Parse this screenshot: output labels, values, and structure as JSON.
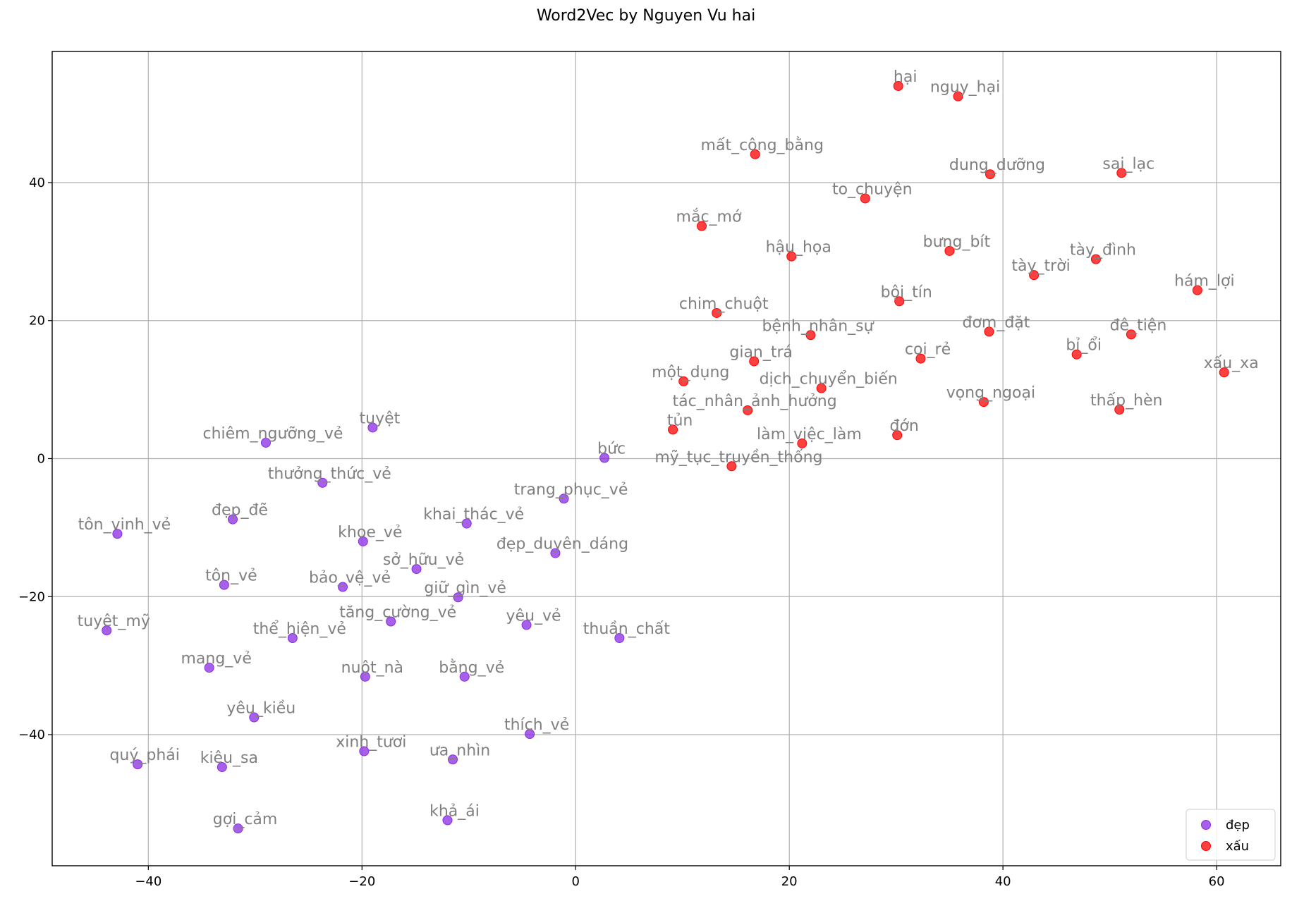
{
  "chart_data": {
    "type": "scatter",
    "title": "Word2Vec by Nguyen Vu hai",
    "xlabel": "",
    "ylabel": "",
    "xlim": [
      -49,
      66
    ],
    "ylim": [
      -59,
      59
    ],
    "xticks": [
      -40,
      -20,
      0,
      20,
      40,
      60
    ],
    "yticks": [
      -40,
      -20,
      0,
      20,
      40
    ],
    "grid": true,
    "legend_position": "bottom-right",
    "series": [
      {
        "name": "đẹp",
        "color": "#8a2be2",
        "points": [
          {
            "label": "tuyệt",
            "x": -19.0,
            "y": 4.5
          },
          {
            "label": "chiêm_ngưỡng_vẻ",
            "x": -29.0,
            "y": 2.3
          },
          {
            "label": "bức",
            "x": 2.7,
            "y": 0.1
          },
          {
            "label": "thưởng_thức_vẻ",
            "x": -23.7,
            "y": -3.5
          },
          {
            "label": "trang_phục_vẻ",
            "x": -1.1,
            "y": -5.8
          },
          {
            "label": "đẹp_đẽ",
            "x": -32.1,
            "y": -8.8
          },
          {
            "label": "khai_thác_vẻ",
            "x": -10.2,
            "y": -9.4
          },
          {
            "label": "tôn_vinh_vẻ",
            "x": -42.9,
            "y": -10.9
          },
          {
            "label": "khoe_vẻ",
            "x": -19.9,
            "y": -12.0
          },
          {
            "label": "đẹp_duyên_dáng",
            "x": -1.9,
            "y": -13.7
          },
          {
            "label": "sở_hữu_vẻ",
            "x": -14.9,
            "y": -16.0
          },
          {
            "label": "tôn_vẻ",
            "x": -32.9,
            "y": -18.3
          },
          {
            "label": "bảo_vệ_vẻ",
            "x": -21.8,
            "y": -18.6
          },
          {
            "label": "giữ_gìn_vẻ",
            "x": -11.0,
            "y": -20.1
          },
          {
            "label": "tăng_cường_vẻ",
            "x": -17.3,
            "y": -23.6
          },
          {
            "label": "yêu_vẻ",
            "x": -4.6,
            "y": -24.1
          },
          {
            "label": "tuyệt_mỹ",
            "x": -43.9,
            "y": -24.9
          },
          {
            "label": "thể_hiện_vẻ",
            "x": -26.5,
            "y": -26.0
          },
          {
            "label": "thuần_chất",
            "x": 4.1,
            "y": -26.0
          },
          {
            "label": "mang_vẻ",
            "x": -34.3,
            "y": -30.3
          },
          {
            "label": "nuột_nà",
            "x": -19.7,
            "y": -31.6
          },
          {
            "label": "bằng_vẻ",
            "x": -10.4,
            "y": -31.6
          },
          {
            "label": "yêu_kiều",
            "x": -30.1,
            "y": -37.5
          },
          {
            "label": "thích_vẻ",
            "x": -4.3,
            "y": -39.9
          },
          {
            "label": "xinh_tươi",
            "x": -19.8,
            "y": -42.4
          },
          {
            "label": "ưa_nhìn",
            "x": -11.5,
            "y": -43.6
          },
          {
            "label": "quý_phái",
            "x": -41.0,
            "y": -44.3
          },
          {
            "label": "kiêu_sa",
            "x": -33.1,
            "y": -44.7
          },
          {
            "label": "khả_ái",
            "x": -12.0,
            "y": -52.4
          },
          {
            "label": "gợi_cảm",
            "x": -31.6,
            "y": -53.6
          }
        ]
      },
      {
        "name": "xấu",
        "color": "#ff0000",
        "points": [
          {
            "label": "hại",
            "x": 30.2,
            "y": 54.0
          },
          {
            "label": "nguy_hại",
            "x": 35.8,
            "y": 52.5
          },
          {
            "label": "mất_công_bằng",
            "x": 16.8,
            "y": 44.1
          },
          {
            "label": "dung_dưỡng",
            "x": 38.8,
            "y": 41.2
          },
          {
            "label": "sai_lạc",
            "x": 51.1,
            "y": 41.4
          },
          {
            "label": "to_chuyện",
            "x": 27.1,
            "y": 37.7
          },
          {
            "label": "mắc_mớ",
            "x": 11.8,
            "y": 33.7
          },
          {
            "label": "hậu_họa",
            "x": 20.2,
            "y": 29.3
          },
          {
            "label": "bưng_bít",
            "x": 35.0,
            "y": 30.1
          },
          {
            "label": "tày_đình",
            "x": 48.7,
            "y": 28.9
          },
          {
            "label": "tày_trời",
            "x": 42.9,
            "y": 26.6
          },
          {
            "label": "hám_lợi",
            "x": 58.2,
            "y": 24.4
          },
          {
            "label": "bội_tín",
            "x": 30.3,
            "y": 22.8
          },
          {
            "label": "chim_chuột",
            "x": 13.2,
            "y": 21.1
          },
          {
            "label": "bệnh_nhân_sự",
            "x": 22.0,
            "y": 17.9
          },
          {
            "label": "đơm_đặt",
            "x": 38.7,
            "y": 18.4
          },
          {
            "label": "đê_tiện",
            "x": 52.0,
            "y": 18.0
          },
          {
            "label": "bỉ_ổi",
            "x": 46.9,
            "y": 15.1
          },
          {
            "label": "coi_rẻ",
            "x": 32.3,
            "y": 14.5
          },
          {
            "label": "gian_trá",
            "x": 16.7,
            "y": 14.1
          },
          {
            "label": "một_dụng",
            "x": 10.1,
            "y": 11.2
          },
          {
            "label": "xấu_xa",
            "x": 60.7,
            "y": 12.5
          },
          {
            "label": "dịch_chuyển_biến",
            "x": 23.0,
            "y": 10.2
          },
          {
            "label": "vọng_ngoại",
            "x": 38.2,
            "y": 8.2
          },
          {
            "label": "thấp_hèn",
            "x": 50.9,
            "y": 7.1
          },
          {
            "label": "tác_nhân_ảnh_hưởng",
            "x": 16.1,
            "y": 7.0
          },
          {
            "label": "tủn",
            "x": 9.1,
            "y": 4.2
          },
          {
            "label": "đớn",
            "x": 30.1,
            "y": 3.4
          },
          {
            "label": "làm_việc_làm",
            "x": 21.2,
            "y": 2.2
          },
          {
            "label": "mỹ_tục_truyền_thống",
            "x": 14.6,
            "y": -1.1
          }
        ]
      }
    ]
  }
}
